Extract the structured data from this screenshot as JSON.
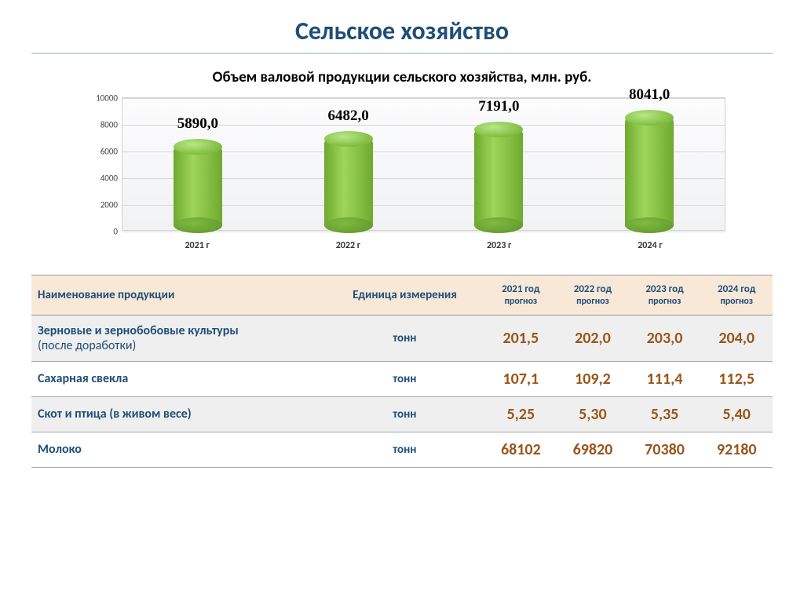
{
  "page": {
    "title": "Сельское хозяйство"
  },
  "chart": {
    "type": "bar",
    "title": "Объем валовой продукции сельского хозяйства, млн. руб.",
    "categories": [
      "2021 г",
      "2022 г",
      "2023 г",
      "2024 г"
    ],
    "values": [
      5890.0,
      6482.0,
      7191.0,
      8041.0
    ],
    "value_labels": [
      "5890,0",
      "6482,0",
      "7191,0",
      "8041,0"
    ],
    "ylim": [
      0,
      10000
    ],
    "ytick_step": 2000,
    "yticks": [
      "0",
      "2000",
      "4000",
      "6000",
      "8000",
      "10000"
    ],
    "bar_color": "#87c249",
    "bar_color_dark": "#6eaa2e",
    "background_color": "#f5f6f8",
    "grid_color": "#d7d7d7",
    "value_label_fontsize": 19,
    "value_label_font": "Times New Roman",
    "axis_label_fontsize": 12
  },
  "table": {
    "headers": {
      "name": "Наименование продукции",
      "unit": "Единица измерения",
      "years": [
        {
          "year": "2021 год",
          "sub": "прогноз"
        },
        {
          "year": "2022 год",
          "sub": "прогноз"
        },
        {
          "year": "2023 год",
          "sub": "прогноз"
        },
        {
          "year": "2024 год",
          "sub": "прогноз"
        }
      ]
    },
    "rows": [
      {
        "name": "Зерновые и зернобобовые культуры",
        "name_sub": "(после доработки)",
        "unit": "тонн",
        "values": [
          "201,5",
          "202,0",
          "203,0",
          "204,0"
        ],
        "alt": true
      },
      {
        "name": "Сахарная свекла",
        "name_sub": "",
        "unit": "тонн",
        "values": [
          "107,1",
          "109,2",
          "111,4",
          "112,5"
        ],
        "alt": false
      },
      {
        "name": "Скот и птица  (в живом весе)",
        "name_sub": "",
        "unit": "тонн",
        "values": [
          "5,25",
          "5,30",
          "5,35",
          "5,40"
        ],
        "alt": true
      },
      {
        "name": "Молоко",
        "name_sub": "",
        "unit": "тонн",
        "values": [
          "68102",
          "69820",
          "70380",
          "92180"
        ],
        "alt": false
      }
    ],
    "colors": {
      "header_bg": "#f7e8d7",
      "header_text": "#1f4e79",
      "name_text": "#1f4e79",
      "value_text": "#9b5418",
      "alt_row_bg": "#efefef",
      "border": "#a9a9a9"
    }
  }
}
